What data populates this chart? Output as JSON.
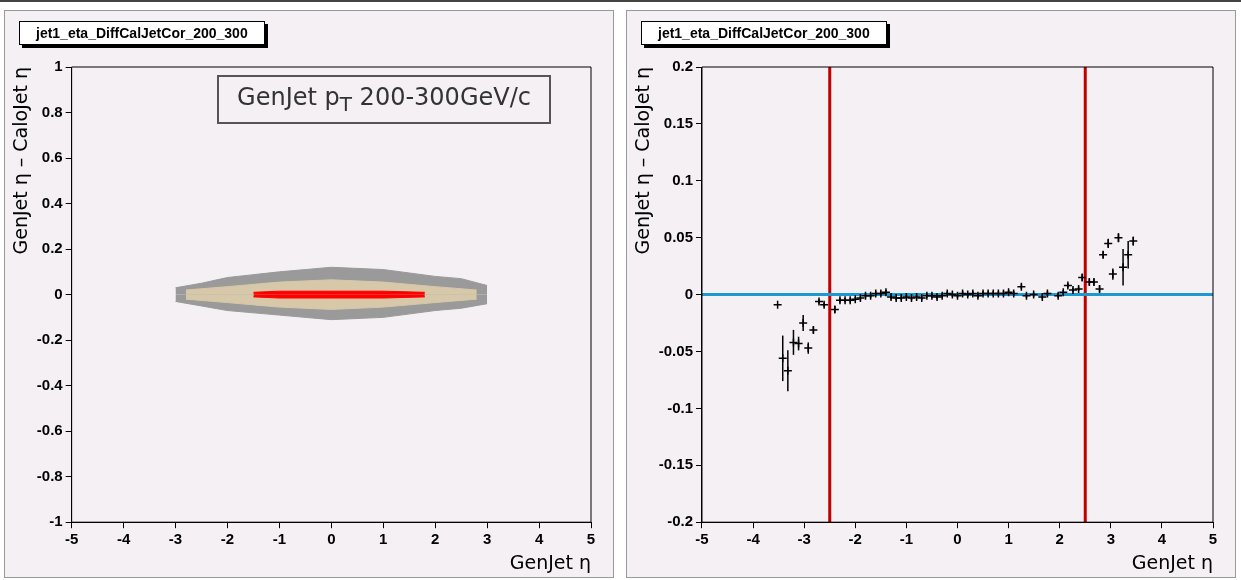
{
  "chart_data": [
    {
      "type": "area",
      "title": "jet1_eta_DiffCalJetCor_200_300",
      "xlabel": "GenJet η",
      "ylabel": "GenJet η – CaloJet η",
      "annotations": [
        "GenJet p$_{T}$ 200-300GeV/c"
      ],
      "xlim": [
        -5,
        5
      ],
      "ylim": [
        -1,
        1
      ],
      "xticks": [
        -5,
        -4,
        -3,
        -2,
        -1,
        0,
        1,
        2,
        3,
        4,
        5
      ],
      "yticks": [
        -1,
        -0.8,
        -0.6,
        -0.4,
        -0.2,
        0,
        0.2,
        0.4,
        0.6,
        0.8,
        1
      ],
      "series": [
        {
          "color": "#9a9a9a",
          "x": [
            -3,
            -2.5,
            -2,
            -1,
            0,
            1,
            2,
            2.5,
            3
          ],
          "values": [
            0.03,
            0.05,
            0.075,
            0.1,
            0.12,
            0.11,
            0.08,
            0.07,
            0.04
          ]
        },
        {
          "color": "#9a9a9a",
          "x": [
            -3,
            -2.5,
            -2,
            -1,
            0,
            1,
            2,
            2.5,
            3
          ],
          "values": [
            -0.03,
            -0.05,
            -0.07,
            -0.09,
            -0.11,
            -0.1,
            -0.07,
            -0.06,
            -0.04
          ]
        },
        {
          "color": "#d6c8a8",
          "x": [
            -2.8,
            -2,
            -1,
            0,
            1,
            2,
            2.8
          ],
          "values": [
            0.02,
            0.035,
            0.055,
            0.065,
            0.055,
            0.035,
            0.02
          ]
        },
        {
          "color": "#d6c8a8",
          "x": [
            -2.8,
            -2,
            -1,
            0,
            1,
            2,
            2.8
          ],
          "values": [
            -0.02,
            -0.035,
            -0.055,
            -0.065,
            -0.055,
            -0.035,
            -0.02
          ]
        },
        {
          "color": "#ff0000",
          "x": [
            -1.5,
            -1,
            0,
            1,
            1.8
          ],
          "values": [
            0.01,
            0.015,
            0.015,
            0.015,
            0.01
          ]
        },
        {
          "color": "#ff0000",
          "x": [
            -1.5,
            -1,
            0,
            1,
            1.8
          ],
          "values": [
            -0.01,
            -0.015,
            -0.015,
            -0.015,
            -0.01
          ]
        }
      ]
    },
    {
      "type": "scatter",
      "title": "jet1_eta_DiffCalJetCor_200_300",
      "xlabel": "GenJet η",
      "ylabel": "GenJet η – CaloJet η",
      "xlim": [
        -5,
        5
      ],
      "ylim": [
        -0.2,
        0.2
      ],
      "xticks": [
        -5,
        -4,
        -3,
        -2,
        -1,
        0,
        1,
        2,
        3,
        4,
        5
      ],
      "yticks": [
        -0.2,
        -0.15,
        -0.1,
        -0.05,
        0,
        0.05,
        0.1,
        0.15,
        0.2
      ],
      "grid": false,
      "marker": "cross",
      "series": [
        {
          "color": "#000000",
          "x": [
            -3.52,
            -3.42,
            -3.32,
            -3.21,
            -3.11,
            -3.02,
            -2.92,
            -2.82,
            -2.71,
            -2.61,
            -2.4,
            -2.3,
            -2.2,
            -2.1,
            -2.0,
            -1.9,
            -1.8,
            -1.7,
            -1.6,
            -1.5,
            -1.4,
            -1.3,
            -1.2,
            -1.1,
            -1.0,
            -0.9,
            -0.8,
            -0.7,
            -0.6,
            -0.5,
            -0.4,
            -0.3,
            -0.2,
            -0.1,
            0.0,
            0.1,
            0.2,
            0.3,
            0.4,
            0.5,
            0.6,
            0.7,
            0.8,
            0.9,
            1.0,
            1.1,
            1.25,
            1.35,
            1.49,
            1.66,
            1.76,
            1.97,
            2.07,
            2.16,
            2.26,
            2.37,
            2.44,
            2.58,
            2.67,
            2.78,
            2.85,
            2.95,
            3.04,
            3.15,
            3.24,
            3.34,
            3.44
          ],
          "values": [
            -0.009,
            -0.056,
            -0.067,
            -0.042,
            -0.043,
            -0.025,
            -0.047,
            -0.031,
            -0.006,
            -0.009,
            -0.013,
            -0.005,
            -0.005,
            -0.005,
            -0.004,
            -0.003,
            -0.001,
            -0.001,
            0.001,
            0.001,
            0.002,
            -0.002,
            -0.003,
            -0.003,
            -0.002,
            -0.003,
            -0.002,
            -0.003,
            -0.001,
            -0.001,
            -0.002,
            -0.001,
            0.001,
            0.0,
            -0.001,
            0.001,
            0.0,
            0.001,
            -0.001,
            0.001,
            0.001,
            0.001,
            0.001,
            0.001,
            0.002,
            0.001,
            0.007,
            -0.001,
            0.0,
            -0.002,
            0.001,
            -0.001,
            0.002,
            0.008,
            0.004,
            0.005,
            0.015,
            0.011,
            0.011,
            0.005,
            0.035,
            0.045,
            0.018,
            0.05,
            0.024,
            0.035,
            0.047
          ],
          "errors": [
            null,
            0.02,
            0.018,
            0.011,
            0.006,
            0.007,
            0.005,
            0.003,
            0.002,
            0.002,
            0.003,
            0.002,
            0.002,
            0.002,
            0.002,
            0.002,
            0.002,
            0.002,
            0.002,
            0.002,
            0.002,
            0.002,
            0.002,
            0.002,
            0.002,
            0.002,
            0.002,
            0.002,
            0.002,
            0.002,
            0.002,
            0.002,
            0.002,
            0.002,
            0.002,
            0.002,
            0.002,
            0.002,
            0.002,
            0.002,
            0.002,
            0.002,
            0.002,
            0.002,
            0.002,
            0.002,
            0.002,
            0.002,
            0.002,
            0.002,
            0.002,
            0.002,
            0.002,
            0.002,
            0.002,
            0.002,
            0.003,
            0.003,
            0.003,
            0.003,
            0.003,
            0.004,
            0.005,
            0.004,
            0.016,
            0.012,
            0.004
          ]
        }
      ],
      "ref_lines": [
        {
          "axis": "x",
          "value": -2.5,
          "color": "#c00000"
        },
        {
          "axis": "x",
          "value": 2.5,
          "color": "#c00000"
        },
        {
          "axis": "y",
          "value": 0,
          "color": "#1a9ad0"
        }
      ]
    }
  ]
}
